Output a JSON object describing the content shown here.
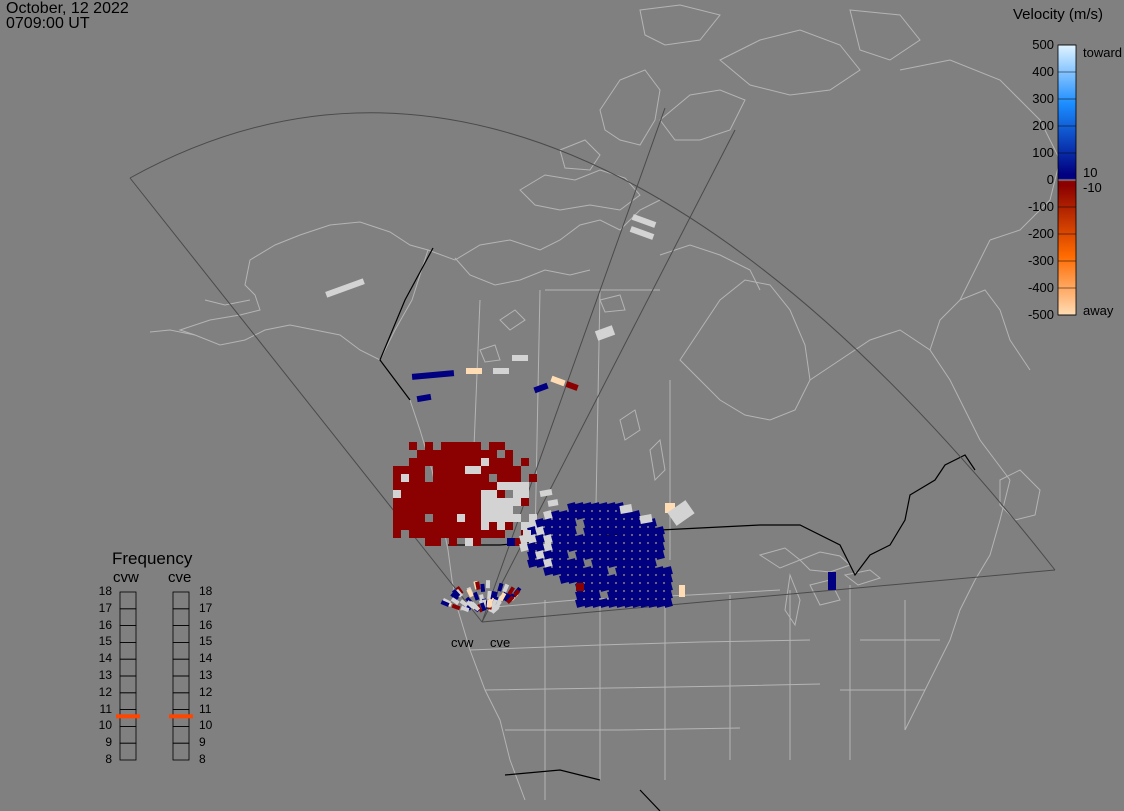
{
  "header": {
    "date": "October, 12 2022",
    "time": "0709:00 UT"
  },
  "colorbar": {
    "title": "Velocity (m/s)",
    "ticks": [
      "500",
      "400",
      "300",
      "200",
      "100",
      "0",
      "-100",
      "-200",
      "-300",
      "-400",
      "-500"
    ],
    "toward_label": "toward",
    "away_label": "away",
    "pos_threshold": "10",
    "neg_threshold": "-10",
    "colors": {
      "toward_high": "#e0f4ff",
      "toward_mid": "#1a8cff",
      "toward_low": "#000080",
      "zero": "#d3d3d3",
      "away_low": "#8b0000",
      "away_mid": "#ff6a00",
      "away_high": "#ffdcb4"
    }
  },
  "frequency_panel": {
    "title": "Frequency",
    "radars": [
      "cvw",
      "cve"
    ],
    "scale": [
      "18",
      "17",
      "16",
      "15",
      "14",
      "13",
      "12",
      "11",
      "10",
      "9",
      "8"
    ],
    "cvw_mhz": 10.6,
    "cve_mhz": 10.6,
    "marker_color": "#ff4500"
  },
  "radars": {
    "west_label": "cvw",
    "east_label": "cve"
  },
  "colors": {
    "background": "#808080",
    "coastline": "#b4b4b4",
    "border": "#000000",
    "fov": "#4a4a4a",
    "toward": "#000080",
    "away": "#8b0000",
    "ground": "#d3d3d3",
    "fast_away": "#ffdcb4"
  }
}
